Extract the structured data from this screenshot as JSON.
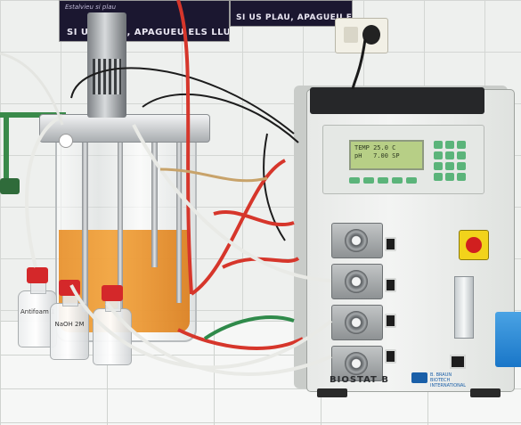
{
  "posters": {
    "left": {
      "small_text": "Estalvieu si plau",
      "main_text": "SI US PLAU, APAGUEU ELS LLUMS"
    },
    "right": {
      "main_text": "SI US PLAU, APAGUEU ELS LLUMS"
    }
  },
  "bottles": [
    {
      "label": "Antifoam 10%"
    },
    {
      "label": "NaOH 2M"
    },
    {
      "label": ""
    }
  ],
  "controller": {
    "brand": "BIOSTAT B",
    "lcd_lines": [
      "TEMP 25.0 C",
      "pH   7.00 SP"
    ],
    "maker": "B. BRAUN\nBIOTECH\nINTERNATIONAL"
  },
  "colors": {
    "broth": "#f0a03a",
    "bottle_cap": "#d4282a",
    "keypad": "#5bb47a",
    "silicone_tube_red": "#d6362b",
    "emergency_stop": "#d11f1f"
  }
}
